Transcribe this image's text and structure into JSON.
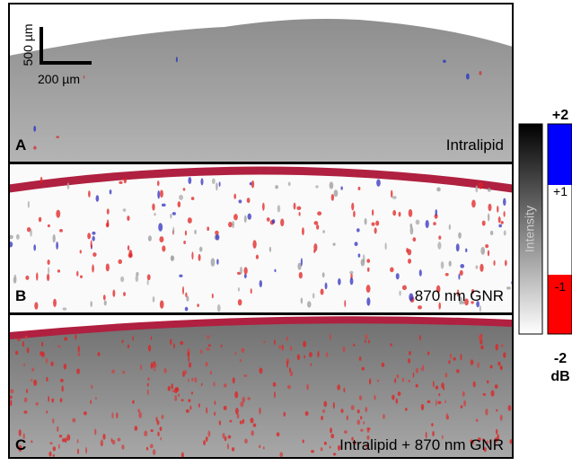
{
  "panels": [
    {
      "letter": "A",
      "label": "Intralipid"
    },
    {
      "letter": "B",
      "label": "870 nm GNR"
    },
    {
      "letter": "C",
      "label": "Intralipid + 870 nm GNR"
    }
  ],
  "scale_bar": {
    "vertical": "500 µm",
    "horizontal": "200 µm"
  },
  "intensity_bar": {
    "label": "Intensity"
  },
  "db_bar": {
    "ticks": [
      "+2",
      "+1",
      "-1",
      "-2"
    ],
    "unit": "dB"
  }
}
